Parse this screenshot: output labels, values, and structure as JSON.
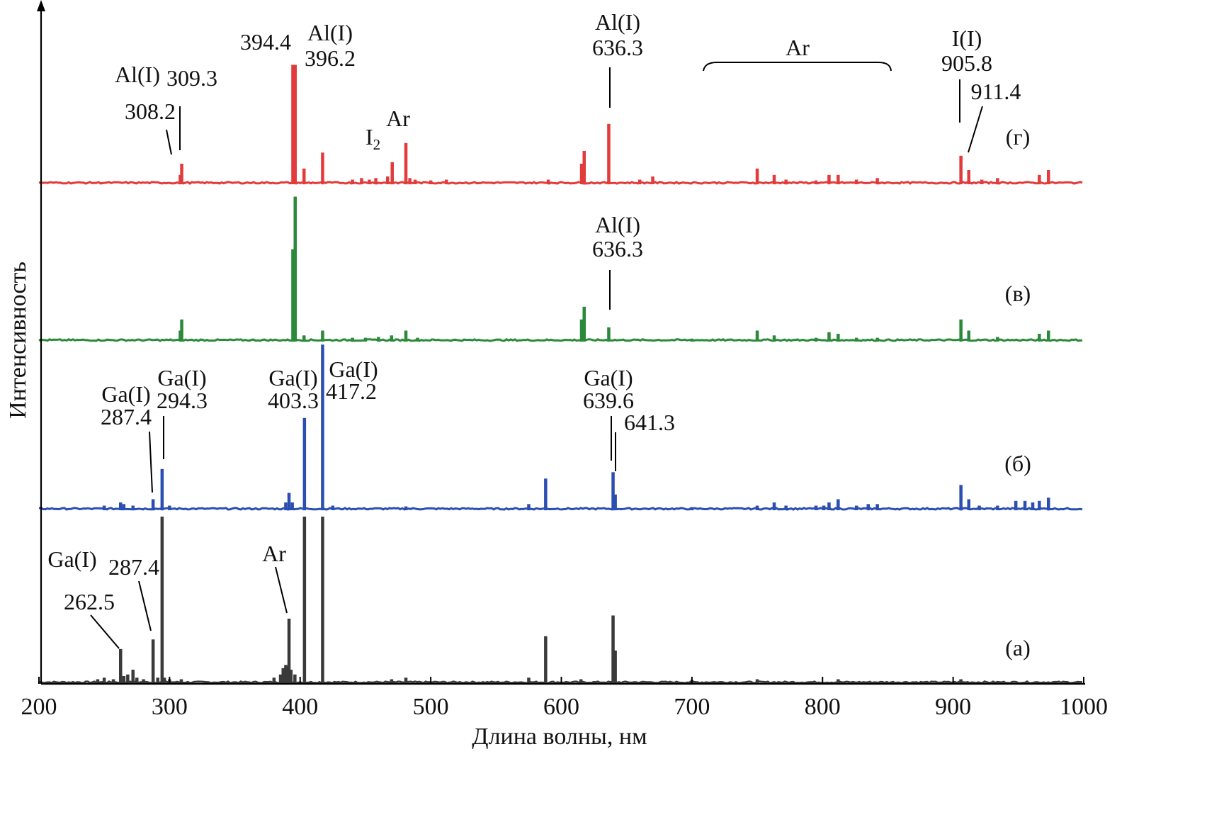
{
  "chart_data": {
    "type": "line",
    "title": "",
    "xlabel": "Длина волны, нм",
    "ylabel": "Интенсивность",
    "xlim": [
      200,
      1000
    ],
    "x_ticks": [
      200,
      300,
      400,
      500,
      600,
      700,
      800,
      900,
      1000
    ],
    "x_tick_labels": [
      "200",
      "300",
      "400",
      "500",
      "600",
      "700",
      "800",
      "900",
      "1000"
    ],
    "series": [
      {
        "name": "(а)",
        "color": "#3a3a3a",
        "baseline_offset": 0,
        "peaks": [
          [
            245,
            0.02
          ],
          [
            250,
            0.03
          ],
          [
            257,
            0.02
          ],
          [
            262.5,
            0.21
          ],
          [
            265,
            0.04
          ],
          [
            268,
            0.05
          ],
          [
            272,
            0.08
          ],
          [
            275,
            0.03
          ],
          [
            280,
            0.02
          ],
          [
            287.4,
            0.27
          ],
          [
            291,
            0.03
          ],
          [
            294.3,
            1.04
          ],
          [
            296,
            0.03
          ],
          [
            300,
            0.02
          ],
          [
            309,
            0.02
          ],
          [
            380,
            0.03
          ],
          [
            385,
            0.05
          ],
          [
            387,
            0.09
          ],
          [
            389,
            0.11
          ],
          [
            390,
            0.1
          ],
          [
            391.5,
            0.4
          ],
          [
            393,
            0.08
          ],
          [
            396,
            0.05
          ],
          [
            403.3,
            1.04
          ],
          [
            417.2,
            1.04
          ],
          [
            470,
            0.02
          ],
          [
            481,
            0.03
          ],
          [
            575,
            0.03
          ],
          [
            588,
            0.29
          ],
          [
            615,
            0.02
          ],
          [
            639.6,
            0.42
          ],
          [
            641.3,
            0.2
          ],
          [
            700,
            0.015
          ],
          [
            750,
            0.02
          ],
          [
            812,
            0.02
          ],
          [
            906,
            0.02
          ]
        ]
      },
      {
        "name": "(б)",
        "color": "#2b4fb0",
        "baseline_offset": 0,
        "peaks": [
          [
            250,
            0.02
          ],
          [
            262.5,
            0.04
          ],
          [
            265,
            0.03
          ],
          [
            272,
            0.02
          ],
          [
            287.4,
            0.06
          ],
          [
            294.3,
            0.25
          ],
          [
            300,
            0.02
          ],
          [
            389,
            0.04
          ],
          [
            391.5,
            0.1
          ],
          [
            394,
            0.04
          ],
          [
            403.3,
            0.57
          ],
          [
            417.2,
            1.03
          ],
          [
            425,
            0.02
          ],
          [
            481,
            0.015
          ],
          [
            575,
            0.03
          ],
          [
            588,
            0.19
          ],
          [
            639.6,
            0.23
          ],
          [
            641.3,
            0.09
          ],
          [
            700,
            0.01
          ],
          [
            750,
            0.02
          ],
          [
            763,
            0.04
          ],
          [
            772,
            0.02
          ],
          [
            795,
            0.02
          ],
          [
            801,
            0.02
          ],
          [
            805,
            0.04
          ],
          [
            812,
            0.06
          ],
          [
            826,
            0.02
          ],
          [
            835,
            0.03
          ],
          [
            842,
            0.03
          ],
          [
            906,
            0.15
          ],
          [
            912,
            0.06
          ],
          [
            920,
            0.02
          ],
          [
            934,
            0.02
          ],
          [
            948,
            0.05
          ],
          [
            955,
            0.05
          ],
          [
            961,
            0.04
          ],
          [
            966,
            0.05
          ],
          [
            973,
            0.07
          ]
        ]
      },
      {
        "name": "(в)",
        "color": "#2a8a3a",
        "baseline_offset": 0,
        "peaks": [
          [
            308.2,
            0.06
          ],
          [
            309.3,
            0.13
          ],
          [
            394.4,
            0.57
          ],
          [
            396.2,
            0.9
          ],
          [
            403,
            0.03
          ],
          [
            417.2,
            0.06
          ],
          [
            440,
            0.015
          ],
          [
            450,
            0.015
          ],
          [
            460,
            0.02
          ],
          [
            470,
            0.03
          ],
          [
            481,
            0.06
          ],
          [
            490,
            0.015
          ],
          [
            615.5,
            0.13
          ],
          [
            617.5,
            0.21
          ],
          [
            636.3,
            0.08
          ],
          [
            700,
            0.01
          ],
          [
            750,
            0.06
          ],
          [
            763,
            0.03
          ],
          [
            795,
            0.015
          ],
          [
            805,
            0.05
          ],
          [
            812,
            0.04
          ],
          [
            826,
            0.015
          ],
          [
            842,
            0.015
          ],
          [
            906,
            0.13
          ],
          [
            912,
            0.06
          ],
          [
            934,
            0.02
          ],
          [
            966,
            0.04
          ],
          [
            973,
            0.06
          ]
        ]
      },
      {
        "name": "(г)",
        "color": "#e23b3b",
        "baseline_offset": 0,
        "peaks": [
          [
            308.2,
            0.05
          ],
          [
            309.3,
            0.12
          ],
          [
            394.4,
            0.74
          ],
          [
            396.2,
            0.74
          ],
          [
            403,
            0.09
          ],
          [
            417.2,
            0.19
          ],
          [
            440,
            0.02
          ],
          [
            447,
            0.03
          ],
          [
            453,
            0.02
          ],
          [
            458,
            0.03
          ],
          [
            467,
            0.04
          ],
          [
            470.5,
            0.13
          ],
          [
            481,
            0.25
          ],
          [
            484,
            0.03
          ],
          [
            488,
            0.02
          ],
          [
            500,
            0.015
          ],
          [
            512,
            0.02
          ],
          [
            590,
            0.02
          ],
          [
            615.5,
            0.12
          ],
          [
            617.5,
            0.2
          ],
          [
            636.3,
            0.37
          ],
          [
            660,
            0.02
          ],
          [
            670,
            0.04
          ],
          [
            750,
            0.09
          ],
          [
            763,
            0.05
          ],
          [
            772,
            0.02
          ],
          [
            795,
            0.015
          ],
          [
            805,
            0.05
          ],
          [
            812,
            0.05
          ],
          [
            826,
            0.02
          ],
          [
            842,
            0.03
          ],
          [
            906,
            0.17
          ],
          [
            912,
            0.08
          ],
          [
            922,
            0.02
          ],
          [
            934,
            0.03
          ],
          [
            966,
            0.05
          ],
          [
            973,
            0.08
          ]
        ]
      }
    ],
    "annotations": {
      "a_tag": "(а)",
      "b_tag": "(б)",
      "v_tag": "(в)",
      "g_tag": "(г)",
      "a_ga_header": "Ga(I)",
      "a_262": "262.5",
      "a_287": "287.4",
      "a_ar": "Ar",
      "b_ga_287_header": "Ga(I)",
      "b_287": "287.4",
      "b_ga_294_header": "Ga(I)",
      "b_294": "294.3",
      "b_ga_403_header": "Ga(I)",
      "b_403": "403.3",
      "b_ga_417_header": "Ga(I)",
      "b_417": "417.2",
      "b_ga_639_header": "Ga(I)",
      "b_639": "639.6",
      "b_641": "641.3",
      "v_al_header": "Al(I)",
      "v_636": "636.3",
      "g_al_309_header": "Al(I)",
      "g_309": "309.3",
      "g_308": "308.2",
      "g_394": "394.4",
      "g_al_396_header": "Al(I)",
      "g_396": "396.2",
      "g_i2": "I",
      "g_i2_sub": "2",
      "g_ar": "Ar",
      "g_al_636_header": "Al(I)",
      "g_636": "636.3",
      "g_ar_bracket": "Ar",
      "g_i_header": "I(I)",
      "g_905": "905.8",
      "g_911": "911.4"
    }
  }
}
